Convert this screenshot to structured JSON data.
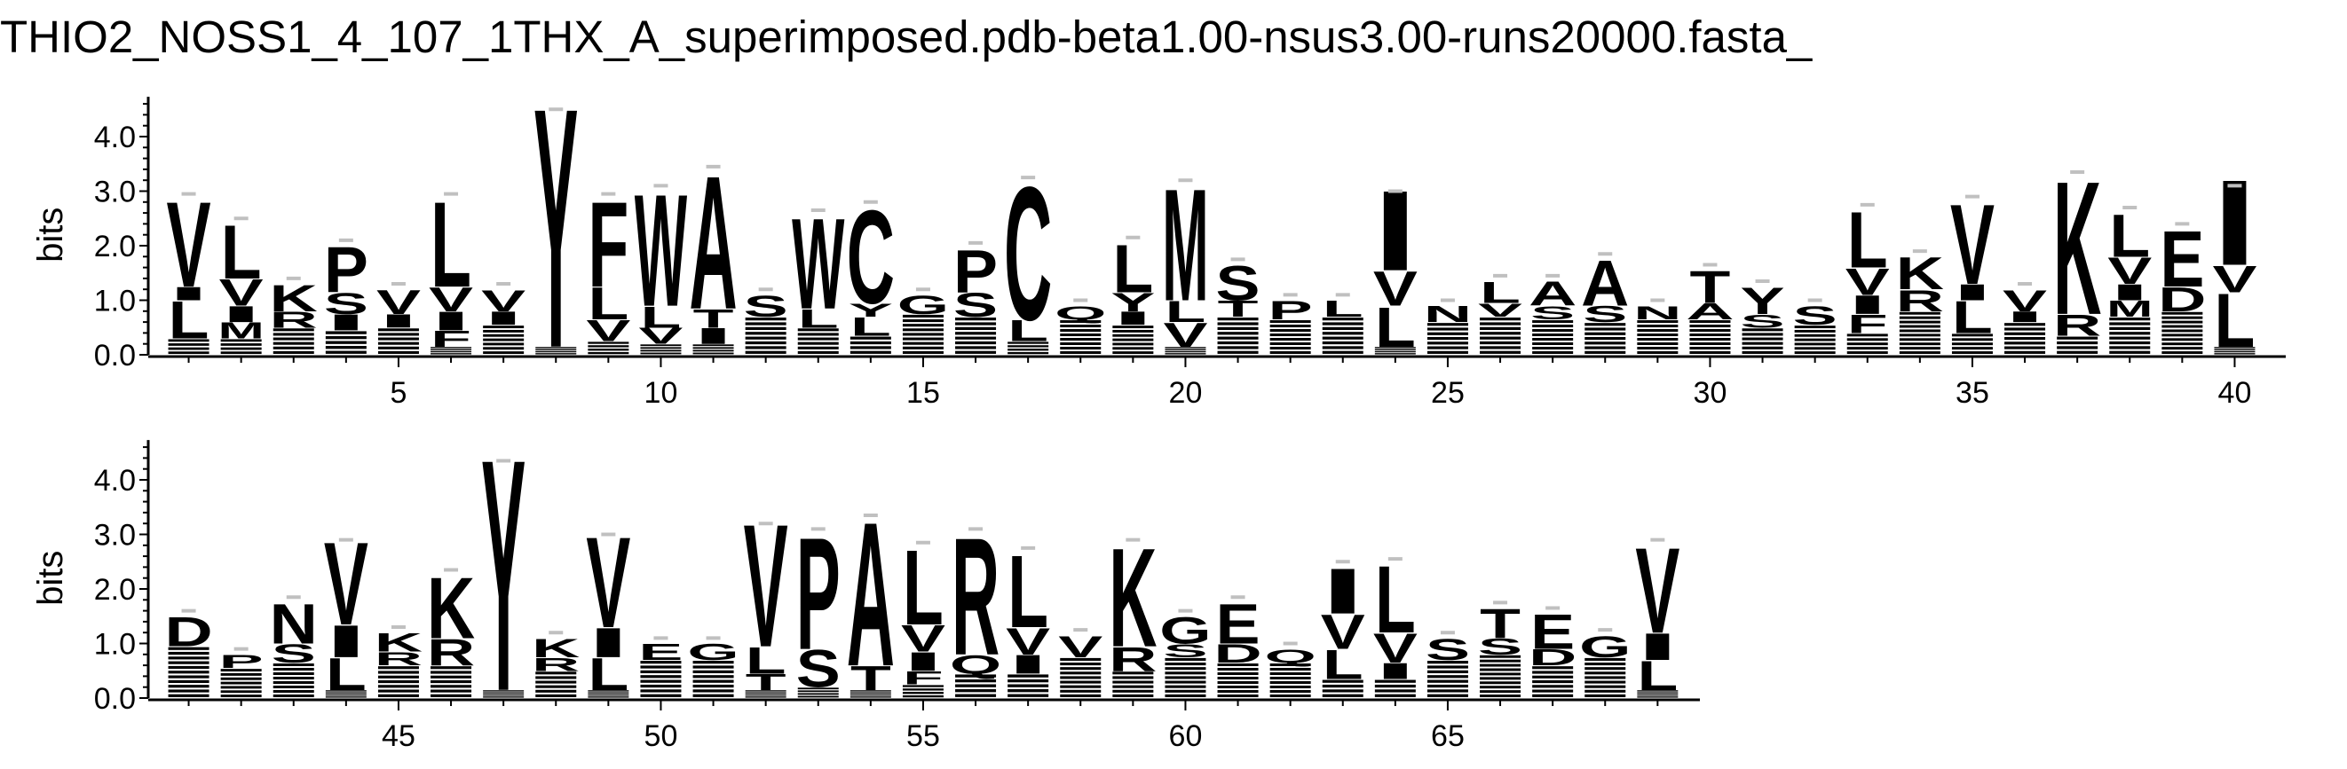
{
  "title": "THIO2_NOSS1_4_107_1THX_A_superimposed.pdb-beta1.00-nsus3.00-runs20000.fasta_",
  "chart_data": {
    "type": "sequence-logo",
    "ylabel": "bits",
    "yticks": [
      "0.0",
      "1.0",
      "2.0",
      "3.0",
      "4.0"
    ],
    "ylim": [
      0,
      4.6
    ],
    "grid": false,
    "colors": {
      "letters": "#000000",
      "error_bars": "#c0c0c0",
      "axes": "#000000"
    },
    "rows": [
      {
        "positions": [
          1,
          40
        ],
        "xtick_labels": [
          "5",
          "10",
          "15",
          "20",
          "25",
          "30",
          "35",
          "40"
        ],
        "xtick_values": [
          5,
          10,
          15,
          20,
          25,
          30,
          35,
          40
        ]
      },
      {
        "positions": [
          41,
          69
        ],
        "xtick_labels": [
          "45",
          "50",
          "55",
          "60",
          "65"
        ],
        "xtick_values": [
          45,
          50,
          55,
          60,
          65
        ]
      }
    ],
    "columns": [
      {
        "pos": 1,
        "total": 2.95,
        "letters": [
          [
            "L",
            0.7
          ],
          [
            "I",
            0.25
          ],
          [
            "V",
            1.6
          ]
        ]
      },
      {
        "pos": 2,
        "total": 2.5,
        "letters": [
          [
            "M",
            0.3
          ],
          [
            "I",
            0.3
          ],
          [
            "V",
            0.5
          ],
          [
            "L",
            1.0
          ]
        ]
      },
      {
        "pos": 3,
        "total": 1.4,
        "letters": [
          [
            "R",
            0.3
          ],
          [
            "K",
            0.5
          ]
        ]
      },
      {
        "pos": 4,
        "total": 2.1,
        "letters": [
          [
            "I",
            0.3
          ],
          [
            "S",
            0.4
          ],
          [
            "P",
            0.85
          ]
        ]
      },
      {
        "pos": 5,
        "total": 1.3,
        "letters": [
          [
            "I",
            0.25
          ],
          [
            "V",
            0.45
          ]
        ]
      },
      {
        "pos": 6,
        "total": 2.95,
        "letters": [
          [
            "F",
            0.3
          ],
          [
            "I",
            0.35
          ],
          [
            "V",
            0.45
          ],
          [
            "L",
            1.6
          ]
        ]
      },
      {
        "pos": 7,
        "total": 1.3,
        "letters": [
          [
            "I",
            0.25
          ],
          [
            "V",
            0.4
          ]
        ]
      },
      {
        "pos": 8,
        "total": 4.5,
        "letters": [
          [
            "Y",
            4.5
          ]
        ]
      },
      {
        "pos": 9,
        "total": 2.95,
        "letters": [
          [
            "V",
            0.4
          ],
          [
            "L",
            0.6
          ],
          [
            "F",
            1.6
          ]
        ]
      },
      {
        "pos": 10,
        "total": 3.1,
        "letters": [
          [
            "V",
            0.3
          ],
          [
            "L",
            0.4
          ],
          [
            "W",
            2.1
          ]
        ]
      },
      {
        "pos": 11,
        "total": 3.45,
        "letters": [
          [
            "I",
            0.3
          ],
          [
            "T",
            0.35
          ],
          [
            "A",
            2.5
          ]
        ]
      },
      {
        "pos": 12,
        "total": 1.2,
        "letters": [
          [
            "S",
            0.4
          ]
        ]
      },
      {
        "pos": 13,
        "total": 2.65,
        "letters": [
          [
            "L",
            0.35
          ],
          [
            "W",
            1.7
          ]
        ]
      },
      {
        "pos": 14,
        "total": 2.8,
        "letters": [
          [
            "L",
            0.35
          ],
          [
            "Y",
            0.25
          ],
          [
            "C",
            1.75
          ]
        ]
      },
      {
        "pos": 15,
        "total": 1.2,
        "letters": [
          [
            "G",
            0.35
          ]
        ]
      },
      {
        "pos": 16,
        "total": 2.05,
        "letters": [
          [
            "S",
            0.45
          ],
          [
            "P",
            0.8
          ]
        ]
      },
      {
        "pos": 17,
        "total": 3.25,
        "letters": [
          [
            "L",
            0.4
          ],
          [
            "C",
            2.5
          ]
        ]
      },
      {
        "pos": 18,
        "total": 1.0,
        "letters": [
          [
            "Q",
            0.25
          ]
        ]
      },
      {
        "pos": 19,
        "total": 2.15,
        "letters": [
          [
            "I",
            0.25
          ],
          [
            "Y",
            0.35
          ],
          [
            "L",
            0.9
          ]
        ]
      },
      {
        "pos": 20,
        "total": 3.2,
        "letters": [
          [
            "V",
            0.45
          ],
          [
            "L",
            0.4
          ],
          [
            "M",
            2.1
          ]
        ]
      },
      {
        "pos": 21,
        "total": 1.75,
        "letters": [
          [
            "T",
            0.3
          ],
          [
            "S",
            0.65
          ]
        ]
      },
      {
        "pos": 22,
        "total": 1.1,
        "letters": [
          [
            "P",
            0.35
          ]
        ]
      },
      {
        "pos": 23,
        "total": 1.1,
        "letters": [
          [
            "L",
            0.3
          ]
        ]
      },
      {
        "pos": 24,
        "total": 3.0,
        "letters": [
          [
            "L",
            0.75
          ],
          [
            "V",
            0.65
          ],
          [
            "I",
            1.5
          ]
        ]
      },
      {
        "pos": 25,
        "total": 1.0,
        "letters": [
          [
            "N",
            0.3
          ]
        ]
      },
      {
        "pos": 26,
        "total": 1.45,
        "letters": [
          [
            "V",
            0.25
          ],
          [
            "L",
            0.4
          ]
        ]
      },
      {
        "pos": 27,
        "total": 1.45,
        "letters": [
          [
            "S",
            0.25
          ],
          [
            "A",
            0.45
          ]
        ]
      },
      {
        "pos": 28,
        "total": 1.85,
        "letters": [
          [
            "S",
            0.3
          ],
          [
            "A",
            0.85
          ]
        ]
      },
      {
        "pos": 29,
        "total": 1.0,
        "letters": [
          [
            "N",
            0.25
          ]
        ]
      },
      {
        "pos": 30,
        "total": 1.65,
        "letters": [
          [
            "A",
            0.3
          ],
          [
            "T",
            0.6
          ]
        ]
      },
      {
        "pos": 31,
        "total": 1.35,
        "letters": [
          [
            "S",
            0.25
          ],
          [
            "Y",
            0.5
          ]
        ]
      },
      {
        "pos": 32,
        "total": 1.0,
        "letters": [
          [
            "S",
            0.35
          ]
        ]
      },
      {
        "pos": 33,
        "total": 2.75,
        "letters": [
          [
            "F",
            0.35
          ],
          [
            "I",
            0.35
          ],
          [
            "V",
            0.5
          ],
          [
            "L",
            1.05
          ]
        ]
      },
      {
        "pos": 34,
        "total": 1.9,
        "letters": [
          [
            "R",
            0.4
          ],
          [
            "K",
            0.6
          ]
        ]
      },
      {
        "pos": 35,
        "total": 2.9,
        "letters": [
          [
            "L",
            0.6
          ],
          [
            "I",
            0.3
          ],
          [
            "V",
            1.5
          ]
        ]
      },
      {
        "pos": 36,
        "total": 1.3,
        "letters": [
          [
            "I",
            0.2
          ],
          [
            "V",
            0.4
          ]
        ]
      },
      {
        "pos": 37,
        "total": 3.35,
        "letters": [
          [
            "R",
            0.4
          ],
          [
            "K",
            2.5
          ]
        ]
      },
      {
        "pos": 38,
        "total": 2.7,
        "letters": [
          [
            "M",
            0.3
          ],
          [
            "I",
            0.3
          ],
          [
            "V",
            0.5
          ],
          [
            "L",
            0.8
          ]
        ]
      },
      {
        "pos": 39,
        "total": 2.4,
        "letters": [
          [
            "D",
            0.45
          ],
          [
            "E",
            1.05
          ]
        ]
      },
      {
        "pos": 40,
        "total": 3.1,
        "letters": [
          [
            "L",
            1.0
          ],
          [
            "V",
            0.5
          ],
          [
            "I",
            1.6
          ]
        ]
      },
      {
        "pos": 41,
        "total": 1.6,
        "letters": [
          [
            "D",
            0.55
          ]
        ]
      },
      {
        "pos": 42,
        "total": 0.9,
        "letters": [
          [
            "P",
            0.25
          ]
        ]
      },
      {
        "pos": 43,
        "total": 1.85,
        "letters": [
          [
            "S",
            0.35
          ],
          [
            "N",
            0.75
          ]
        ]
      },
      {
        "pos": 44,
        "total": 2.9,
        "letters": [
          [
            "L",
            0.6
          ],
          [
            "I",
            0.6
          ],
          [
            "V",
            1.55
          ]
        ]
      },
      {
        "pos": 45,
        "total": 1.3,
        "letters": [
          [
            "R",
            0.25
          ],
          [
            "K",
            0.35
          ]
        ]
      },
      {
        "pos": 46,
        "total": 2.35,
        "letters": [
          [
            "R",
            0.5
          ],
          [
            "K",
            1.15
          ]
        ]
      },
      {
        "pos": 47,
        "total": 4.35,
        "letters": [
          [
            "Y",
            4.35
          ]
        ]
      },
      {
        "pos": 48,
        "total": 1.2,
        "letters": [
          [
            "R",
            0.25
          ],
          [
            "K",
            0.35
          ]
        ]
      },
      {
        "pos": 49,
        "total": 3.0,
        "letters": [
          [
            "L",
            0.6
          ],
          [
            "I",
            0.55
          ],
          [
            "V",
            1.7
          ]
        ]
      },
      {
        "pos": 50,
        "total": 1.1,
        "letters": [
          [
            "E",
            0.3
          ]
        ]
      },
      {
        "pos": 51,
        "total": 1.1,
        "letters": [
          [
            "G",
            0.3
          ]
        ]
      },
      {
        "pos": 52,
        "total": 3.2,
        "letters": [
          [
            "T",
            0.3
          ],
          [
            "L",
            0.5
          ],
          [
            "V",
            2.3
          ]
        ]
      },
      {
        "pos": 53,
        "total": 3.1,
        "letters": [
          [
            "S",
            0.7
          ],
          [
            "P",
            2.1
          ]
        ]
      },
      {
        "pos": 54,
        "total": 3.35,
        "letters": [
          [
            "T",
            0.45
          ],
          [
            "A",
            2.7
          ]
        ]
      },
      {
        "pos": 55,
        "total": 2.85,
        "letters": [
          [
            "F",
            0.25
          ],
          [
            "I",
            0.35
          ],
          [
            "V",
            0.5
          ],
          [
            "L",
            1.4
          ]
        ]
      },
      {
        "pos": 56,
        "total": 3.1,
        "letters": [
          [
            "Q",
            0.35
          ],
          [
            "R",
            2.2
          ]
        ]
      },
      {
        "pos": 57,
        "total": 2.75,
        "letters": [
          [
            "I",
            0.35
          ],
          [
            "V",
            0.5
          ],
          [
            "L",
            1.35
          ]
        ]
      },
      {
        "pos": 58,
        "total": 1.25,
        "letters": [
          [
            "V",
            0.4
          ]
        ]
      },
      {
        "pos": 59,
        "total": 2.9,
        "letters": [
          [
            "R",
            0.45
          ],
          [
            "K",
            1.85
          ]
        ]
      },
      {
        "pos": 60,
        "total": 1.6,
        "letters": [
          [
            "S",
            0.25
          ],
          [
            "G",
            0.5
          ]
        ]
      },
      {
        "pos": 61,
        "total": 1.85,
        "letters": [
          [
            "D",
            0.35
          ],
          [
            "E",
            0.75
          ]
        ]
      },
      {
        "pos": 62,
        "total": 1.0,
        "letters": [
          [
            "Q",
            0.25
          ]
        ]
      },
      {
        "pos": 63,
        "total": 2.5,
        "letters": [
          [
            "L",
            0.55
          ],
          [
            "V",
            0.65
          ],
          [
            "I",
            0.85
          ]
        ]
      },
      {
        "pos": 64,
        "total": 2.55,
        "letters": [
          [
            "I",
            0.3
          ],
          [
            "V",
            0.55
          ],
          [
            "L",
            1.25
          ]
        ]
      },
      {
        "pos": 65,
        "total": 1.2,
        "letters": [
          [
            "S",
            0.4
          ]
        ]
      },
      {
        "pos": 66,
        "total": 1.75,
        "letters": [
          [
            "S",
            0.3
          ],
          [
            "T",
            0.55
          ]
        ]
      },
      {
        "pos": 67,
        "total": 1.65,
        "letters": [
          [
            "D",
            0.3
          ],
          [
            "E",
            0.65
          ]
        ]
      },
      {
        "pos": 68,
        "total": 1.25,
        "letters": [
          [
            "G",
            0.4
          ]
        ]
      },
      {
        "pos": 69,
        "total": 2.9,
        "letters": [
          [
            "L",
            0.55
          ],
          [
            "I",
            0.5
          ],
          [
            "V",
            1.6
          ]
        ]
      }
    ]
  }
}
